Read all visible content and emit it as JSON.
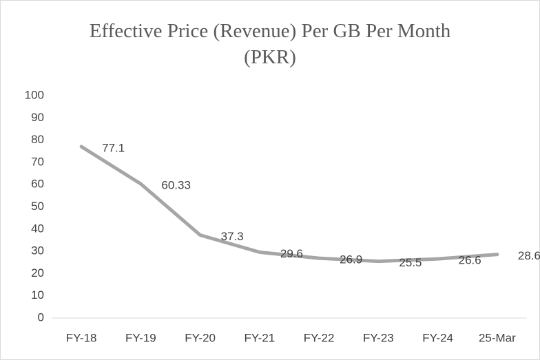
{
  "chart_data": {
    "type": "line",
    "title": "Effective Price (Revenue) Per GB Per Month (PKR)",
    "categories": [
      "FY-18",
      "FY-19",
      "FY-20",
      "FY-21",
      "FY-22",
      "FY-23",
      "FY-24",
      "25-Mar"
    ],
    "series": [
      {
        "name": "Effective Price",
        "color": "#a6a6a6",
        "values": [
          77.1,
          60.33,
          37.3,
          29.6,
          26.9,
          25.5,
          26.6,
          28.6
        ]
      }
    ],
    "ylim": [
      0,
      100
    ],
    "yticks": [
      0,
      10,
      20,
      30,
      40,
      50,
      60,
      70,
      80,
      90,
      100
    ],
    "grid": false
  }
}
